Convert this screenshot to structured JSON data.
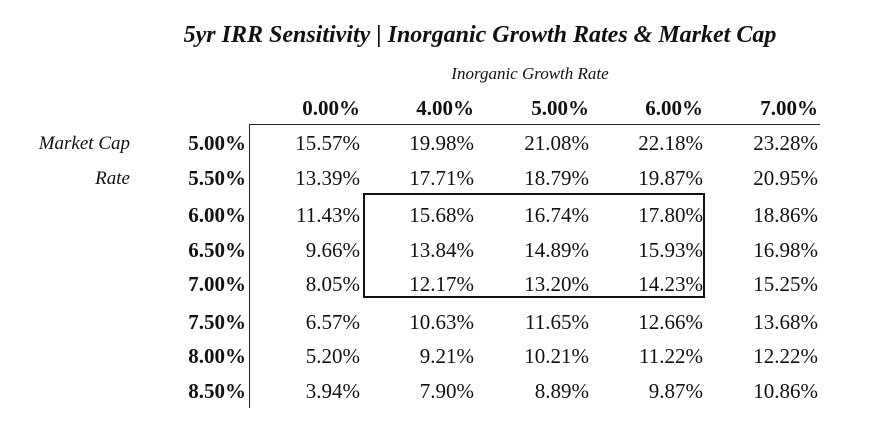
{
  "title": "5yr IRR Sensitivity | Inorganic Growth Rates & Market Cap",
  "column_axis_label": "Inorganic Growth Rate",
  "row_axis_label_line1": "Market Cap",
  "row_axis_label_line2": "Rate",
  "columns": [
    "0.00%",
    "4.00%",
    "5.00%",
    "6.00%",
    "7.00%"
  ],
  "rows": [
    {
      "label": "5.00%",
      "values": [
        "15.57%",
        "19.98%",
        "21.08%",
        "22.18%",
        "23.28%"
      ]
    },
    {
      "label": "5.50%",
      "values": [
        "13.39%",
        "17.71%",
        "18.79%",
        "19.87%",
        "20.95%"
      ]
    },
    {
      "label": "6.00%",
      "values": [
        "11.43%",
        "15.68%",
        "16.74%",
        "17.80%",
        "18.86%"
      ]
    },
    {
      "label": "6.50%",
      "values": [
        "9.66%",
        "13.84%",
        "14.89%",
        "15.93%",
        "16.98%"
      ]
    },
    {
      "label": "7.00%",
      "values": [
        "8.05%",
        "12.17%",
        "13.20%",
        "14.23%",
        "15.25%"
      ]
    },
    {
      "label": "7.50%",
      "values": [
        "6.57%",
        "10.63%",
        "11.65%",
        "12.66%",
        "13.68%"
      ]
    },
    {
      "label": "8.00%",
      "values": [
        "5.20%",
        "9.21%",
        "10.21%",
        "11.22%",
        "12.22%"
      ]
    },
    {
      "label": "8.50%",
      "values": [
        "3.94%",
        "7.90%",
        "8.89%",
        "9.87%",
        "10.86%"
      ]
    }
  ]
}
